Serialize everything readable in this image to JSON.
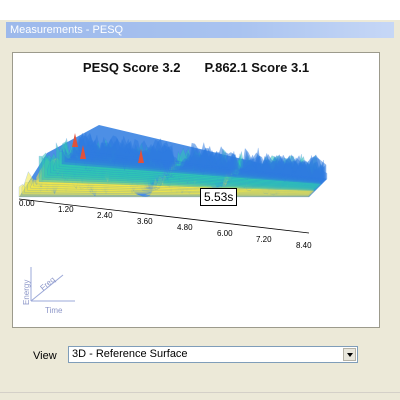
{
  "window": {
    "title": "Measurements - PESQ"
  },
  "plot": {
    "pesq_label": "PESQ Score 3.2",
    "p862_label": "P.862.1 Score 3.1",
    "marker_label": "5.53s",
    "time_ticks": [
      "0.00",
      "1.20",
      "2.40",
      "3.60",
      "4.80",
      "6.00",
      "7.20",
      "8.40"
    ],
    "axis_labels": {
      "energy": "Energy",
      "freq": "Freq",
      "time": "Time"
    },
    "colors": {
      "base": "#2E7BE0",
      "mid": "#2EC4B6",
      "peak": "#F2E84B",
      "hot": "#E0513B"
    }
  },
  "controls": {
    "view_label": "View",
    "view_value": "3D - Reference Surface"
  }
}
